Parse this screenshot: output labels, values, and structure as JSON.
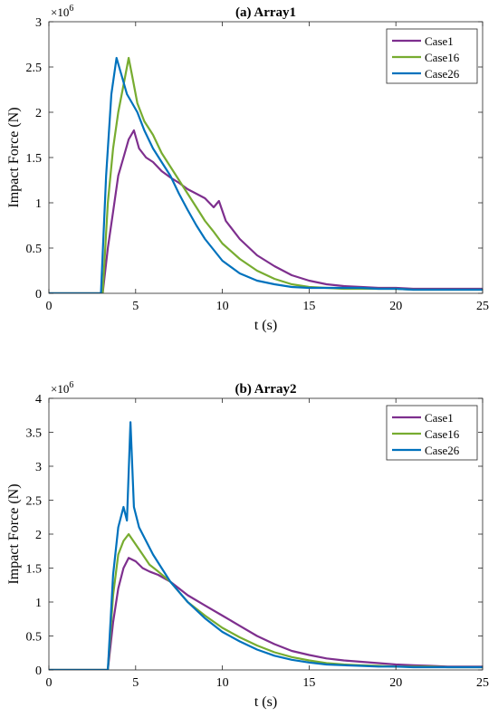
{
  "chart_data": [
    {
      "type": "line",
      "title": "(a) Array1",
      "xlabel": "t (s)",
      "ylabel": "Impact Force (N)",
      "y_exponent_label": "×10",
      "y_exponent_power": "6",
      "xlim": [
        0,
        25
      ],
      "ylim": [
        0,
        3
      ],
      "xticks": [
        0,
        5,
        10,
        15,
        20,
        25
      ],
      "yticks": [
        0,
        0.5,
        1,
        1.5,
        2,
        2.5,
        3
      ],
      "legend_position": "top-right",
      "series": [
        {
          "name": "Case1",
          "color": "#7E2F8E",
          "x": [
            0,
            3.1,
            3.4,
            3.7,
            4.0,
            4.3,
            4.6,
            4.9,
            5.2,
            5.6,
            6.0,
            6.5,
            7.0,
            7.5,
            8.0,
            8.5,
            9.0,
            9.5,
            9.8,
            10.2,
            11,
            12,
            13,
            14,
            15,
            16,
            17,
            18,
            19,
            20,
            21,
            22,
            23,
            24,
            25
          ],
          "y": [
            0,
            0,
            0.5,
            0.9,
            1.3,
            1.5,
            1.7,
            1.8,
            1.6,
            1.5,
            1.45,
            1.35,
            1.28,
            1.22,
            1.15,
            1.1,
            1.05,
            0.95,
            1.02,
            0.8,
            0.6,
            0.42,
            0.3,
            0.2,
            0.14,
            0.1,
            0.08,
            0.07,
            0.06,
            0.06,
            0.05,
            0.05,
            0.05,
            0.05,
            0.05
          ]
        },
        {
          "name": "Case16",
          "color": "#77AC30",
          "x": [
            0,
            3.1,
            3.4,
            3.7,
            4.0,
            4.3,
            4.6,
            4.8,
            5.1,
            5.5,
            6.0,
            6.5,
            7.0,
            7.5,
            8.0,
            8.5,
            9.0,
            9.5,
            10,
            11,
            12,
            13,
            14,
            15,
            16,
            17,
            18,
            19,
            20,
            21,
            22,
            23,
            24,
            25
          ],
          "y": [
            0,
            0,
            1.0,
            1.6,
            2.0,
            2.3,
            2.6,
            2.4,
            2.1,
            1.9,
            1.75,
            1.55,
            1.4,
            1.25,
            1.1,
            0.95,
            0.8,
            0.68,
            0.55,
            0.38,
            0.25,
            0.16,
            0.1,
            0.07,
            0.06,
            0.05,
            0.05,
            0.05,
            0.05,
            0.04,
            0.04,
            0.04,
            0.04,
            0.04
          ]
        },
        {
          "name": "Case26",
          "color": "#0072BD",
          "x": [
            0,
            3.0,
            3.3,
            3.6,
            3.9,
            4.2,
            4.5,
            4.8,
            5.1,
            5.5,
            6.0,
            6.5,
            7.0,
            7.5,
            8.0,
            8.5,
            9.0,
            9.5,
            10,
            11,
            12,
            13,
            14,
            15,
            16,
            17,
            18,
            19,
            20,
            21,
            22,
            23,
            24,
            25
          ],
          "y": [
            0,
            0,
            1.3,
            2.2,
            2.6,
            2.4,
            2.2,
            2.1,
            2.0,
            1.8,
            1.6,
            1.45,
            1.3,
            1.1,
            0.92,
            0.75,
            0.6,
            0.48,
            0.36,
            0.22,
            0.14,
            0.1,
            0.07,
            0.06,
            0.06,
            0.06,
            0.06,
            0.05,
            0.05,
            0.04,
            0.04,
            0.04,
            0.04,
            0.04
          ]
        }
      ]
    },
    {
      "type": "line",
      "title": "(b) Array2",
      "xlabel": "t (s)",
      "ylabel": "Impact Force (N)",
      "y_exponent_label": "×10",
      "y_exponent_power": "6",
      "xlim": [
        0,
        25
      ],
      "ylim": [
        0,
        4
      ],
      "xticks": [
        0,
        5,
        10,
        15,
        20,
        25
      ],
      "yticks": [
        0,
        0.5,
        1,
        1.5,
        2,
        2.5,
        3,
        3.5,
        4
      ],
      "legend_position": "top-right",
      "series": [
        {
          "name": "Case1",
          "color": "#7E2F8E",
          "x": [
            0,
            3.4,
            3.7,
            4.0,
            4.3,
            4.6,
            5.0,
            5.4,
            5.8,
            6.3,
            7.0,
            7.5,
            8.0,
            9.0,
            10,
            11,
            12,
            13,
            14,
            15,
            16,
            17,
            18,
            19,
            20,
            21,
            22,
            23,
            24,
            25
          ],
          "y": [
            0,
            0,
            0.7,
            1.2,
            1.5,
            1.65,
            1.6,
            1.5,
            1.45,
            1.4,
            1.3,
            1.2,
            1.1,
            0.95,
            0.8,
            0.65,
            0.5,
            0.38,
            0.28,
            0.22,
            0.17,
            0.14,
            0.12,
            0.1,
            0.08,
            0.07,
            0.06,
            0.05,
            0.05,
            0.05
          ]
        },
        {
          "name": "Case16",
          "color": "#77AC30",
          "x": [
            0,
            3.4,
            3.7,
            4.0,
            4.3,
            4.6,
            5.0,
            5.4,
            5.8,
            6.3,
            7.0,
            7.5,
            8.0,
            9.0,
            10,
            11,
            12,
            13,
            14,
            15,
            16,
            17,
            18,
            19,
            20,
            21,
            22,
            23,
            24,
            25
          ],
          "y": [
            0,
            0,
            1.1,
            1.7,
            1.9,
            2.0,
            1.85,
            1.7,
            1.55,
            1.45,
            1.3,
            1.15,
            1.0,
            0.8,
            0.62,
            0.48,
            0.36,
            0.26,
            0.19,
            0.14,
            0.1,
            0.08,
            0.07,
            0.06,
            0.05,
            0.05,
            0.05,
            0.04,
            0.04,
            0.04
          ]
        },
        {
          "name": "Case26",
          "color": "#0072BD",
          "x": [
            0,
            3.4,
            3.7,
            4.0,
            4.3,
            4.5,
            4.7,
            4.9,
            5.2,
            5.6,
            6.0,
            6.5,
            7.0,
            7.5,
            8.0,
            9.0,
            10,
            11,
            12,
            13,
            14,
            15,
            16,
            17,
            18,
            19,
            20,
            21,
            22,
            23,
            24,
            25
          ],
          "y": [
            0,
            0,
            1.4,
            2.1,
            2.4,
            2.2,
            3.65,
            2.4,
            2.1,
            1.9,
            1.7,
            1.5,
            1.3,
            1.15,
            1.0,
            0.76,
            0.56,
            0.42,
            0.3,
            0.21,
            0.15,
            0.11,
            0.08,
            0.07,
            0.06,
            0.05,
            0.05,
            0.04,
            0.04,
            0.04,
            0.04,
            0.04
          ]
        }
      ]
    }
  ]
}
